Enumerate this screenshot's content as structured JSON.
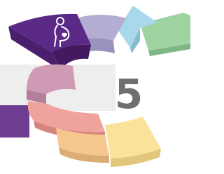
{
  "step_number": "5"
}
